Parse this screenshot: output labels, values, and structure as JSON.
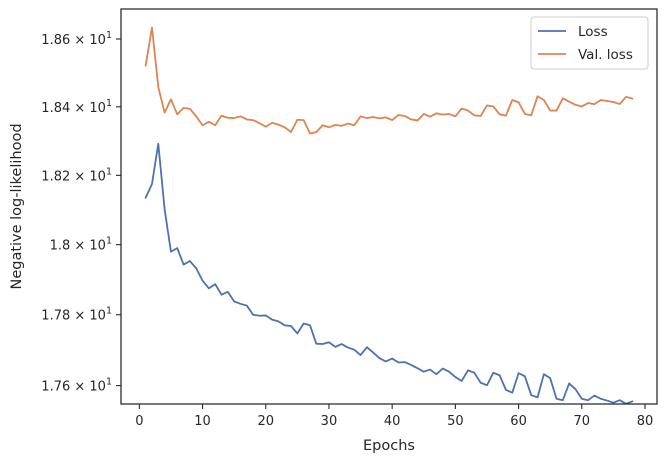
{
  "chart_data": {
    "type": "line",
    "title": "",
    "xlabel": "Epochs",
    "ylabel": "Negative log-likelihood",
    "xlim": [
      -2.9,
      81.9
    ],
    "ylim": [
      17.5484,
      18.6892
    ],
    "x_ticks": [
      0,
      10,
      20,
      30,
      40,
      50,
      60,
      70,
      80
    ],
    "y_ticks": [
      {
        "value": 17.6,
        "mantissa": "1.76",
        "exponent": "1"
      },
      {
        "value": 17.8,
        "mantissa": "1.78",
        "exponent": "1"
      },
      {
        "value": 18.0,
        "mantissa": "1.8",
        "exponent": "1"
      },
      {
        "value": 18.2,
        "mantissa": "1.82",
        "exponent": "1"
      },
      {
        "value": 18.4,
        "mantissa": "1.84",
        "exponent": "1"
      },
      {
        "value": 18.6,
        "mantissa": "1.86",
        "exponent": "1"
      }
    ],
    "y_tick_multiplier": "× 10",
    "grid": false,
    "log_scale_y": true,
    "legend_position": "top-right",
    "x": [
      1,
      2,
      3,
      4,
      5,
      6,
      7,
      8,
      9,
      10,
      11,
      12,
      13,
      14,
      15,
      16,
      17,
      18,
      19,
      20,
      21,
      22,
      23,
      24,
      25,
      26,
      27,
      28,
      29,
      30,
      31,
      32,
      33,
      34,
      35,
      36,
      37,
      38,
      39,
      40,
      41,
      42,
      43,
      44,
      45,
      46,
      47,
      48,
      49,
      50,
      51,
      52,
      53,
      54,
      55,
      56,
      57,
      58,
      59,
      60,
      61,
      62,
      63,
      64,
      65,
      66,
      67,
      68,
      69,
      70,
      71,
      72,
      73,
      74,
      75,
      76,
      77,
      78
    ],
    "series": [
      {
        "name": "Loss",
        "color": "#4c72b0",
        "values": [
          18.135,
          18.175,
          18.292,
          18.102,
          17.98,
          17.99,
          17.943,
          17.953,
          17.932,
          17.897,
          17.875,
          17.887,
          17.857,
          17.865,
          17.838,
          17.831,
          17.826,
          17.8,
          17.797,
          17.798,
          17.786,
          17.781,
          17.77,
          17.768,
          17.747,
          17.775,
          17.77,
          17.718,
          17.717,
          17.722,
          17.709,
          17.717,
          17.707,
          17.701,
          17.686,
          17.708,
          17.693,
          17.677,
          17.668,
          17.676,
          17.665,
          17.666,
          17.658,
          17.649,
          17.639,
          17.645,
          17.632,
          17.648,
          17.639,
          17.624,
          17.613,
          17.643,
          17.636,
          17.608,
          17.601,
          17.636,
          17.629,
          17.588,
          17.58,
          17.635,
          17.626,
          17.573,
          17.567,
          17.632,
          17.621,
          17.563,
          17.559,
          17.606,
          17.59,
          17.563,
          17.559,
          17.572,
          17.563,
          17.558,
          17.552,
          17.559,
          17.549,
          17.556
        ]
      },
      {
        "name": "Val. loss",
        "color": "#dd8452",
        "values": [
          18.521,
          18.634,
          18.458,
          18.383,
          18.422,
          18.378,
          18.397,
          18.394,
          18.372,
          18.346,
          18.356,
          18.346,
          18.374,
          18.368,
          18.367,
          18.372,
          18.363,
          18.361,
          18.352,
          18.342,
          18.353,
          18.348,
          18.34,
          18.326,
          18.362,
          18.361,
          18.322,
          18.326,
          18.346,
          18.34,
          18.347,
          18.344,
          18.351,
          18.346,
          18.372,
          18.367,
          18.37,
          18.366,
          18.369,
          18.361,
          18.376,
          18.373,
          18.363,
          18.36,
          18.379,
          18.371,
          18.381,
          18.377,
          18.379,
          18.372,
          18.395,
          18.389,
          18.375,
          18.373,
          18.404,
          18.401,
          18.378,
          18.374,
          18.42,
          18.413,
          18.379,
          18.375,
          18.431,
          18.42,
          18.389,
          18.389,
          18.425,
          18.415,
          18.406,
          18.401,
          18.411,
          18.408,
          18.42,
          18.417,
          18.414,
          18.408,
          18.429,
          18.424
        ]
      }
    ]
  }
}
